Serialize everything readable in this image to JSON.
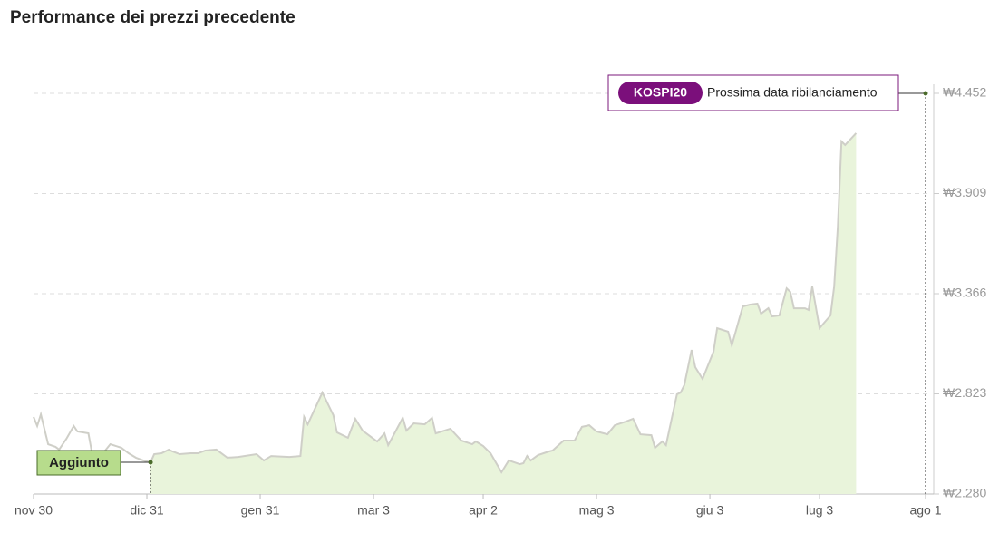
{
  "chart_data": {
    "type": "line",
    "title": "Performance dei prezzi precedente",
    "x": [
      0,
      1,
      2,
      4,
      6,
      7,
      9,
      11,
      12,
      15,
      16,
      17,
      19,
      21,
      24,
      26,
      28,
      30,
      32,
      33,
      35,
      37,
      38,
      40,
      43,
      45,
      47,
      50,
      53,
      56,
      61,
      63,
      65,
      70,
      73,
      74,
      75,
      79,
      82,
      83,
      86,
      88,
      90,
      92,
      94,
      96,
      97,
      99,
      101,
      102,
      104,
      107,
      109,
      110,
      114,
      117,
      120,
      121,
      123,
      125,
      128,
      130,
      133,
      134,
      135,
      136,
      138,
      141,
      142,
      145,
      148,
      150,
      152,
      154,
      157,
      159,
      162,
      164,
      166,
      169,
      170,
      172,
      173,
      176,
      177,
      178,
      180,
      181,
      183,
      186,
      187,
      190,
      191,
      194,
      196,
      198,
      199,
      201,
      202,
      204,
      206,
      207,
      208,
      211,
      212,
      213,
      215,
      218,
      219,
      220,
      221,
      222,
      225
    ],
    "values": [
      2698,
      2649,
      2712,
      2550,
      2536,
      2521,
      2580,
      2649,
      2619,
      2609,
      2501,
      2511,
      2501,
      2550,
      2531,
      2501,
      2477,
      2462,
      2452,
      2496,
      2501,
      2521,
      2511,
      2496,
      2501,
      2501,
      2516,
      2521,
      2477,
      2481,
      2496,
      2462,
      2486,
      2481,
      2486,
      2698,
      2658,
      2830,
      2708,
      2614,
      2585,
      2688,
      2624,
      2594,
      2565,
      2609,
      2545,
      2619,
      2693,
      2624,
      2663,
      2658,
      2693,
      2609,
      2634,
      2570,
      2550,
      2565,
      2540,
      2501,
      2398,
      2462,
      2442,
      2447,
      2486,
      2462,
      2491,
      2511,
      2516,
      2570,
      2570,
      2644,
      2653,
      2619,
      2604,
      2653,
      2673,
      2688,
      2604,
      2599,
      2531,
      2565,
      2545,
      2821,
      2830,
      2870,
      3061,
      2968,
      2904,
      3052,
      3179,
      3160,
      3086,
      3297,
      3307,
      3312,
      3258,
      3287,
      3243,
      3248,
      3395,
      3376,
      3287,
      3287,
      3278,
      3405,
      3179,
      3248,
      3405,
      3730,
      4192,
      4172,
      4236
    ],
    "line_color": "#cfcfc8",
    "area_color": "#e9f4db",
    "xlim": [
      0,
      244
    ],
    "xticks": [
      {
        "value": 0,
        "label": "nov 30"
      },
      {
        "value": 31,
        "label": "dic 31"
      },
      {
        "value": 62,
        "label": "gen 31"
      },
      {
        "value": 93,
        "label": "mar 3"
      },
      {
        "value": 123,
        "label": "apr 2"
      },
      {
        "value": 154,
        "label": "mag 3"
      },
      {
        "value": 185,
        "label": "giu 3"
      },
      {
        "value": 215,
        "label": "lug 3"
      },
      {
        "value": 244,
        "label": "ago 1"
      }
    ],
    "ylim": [
      2280,
      4452
    ],
    "yticks": [
      {
        "value": 2280,
        "label": "₩2.280"
      },
      {
        "value": 2823,
        "label": "₩2.823"
      },
      {
        "value": 3366,
        "label": "₩3.366"
      },
      {
        "value": 3909,
        "label": "₩3.909"
      },
      {
        "value": 4452,
        "label": "₩4.452"
      }
    ],
    "grid": true,
    "annotations": [
      {
        "label": "Aggiunto",
        "x": 32,
        "y": 2452
      },
      {
        "badge": "KOSPI20",
        "label": "Prossima data ribilanciamento",
        "x": 244,
        "y": 4452
      }
    ]
  }
}
